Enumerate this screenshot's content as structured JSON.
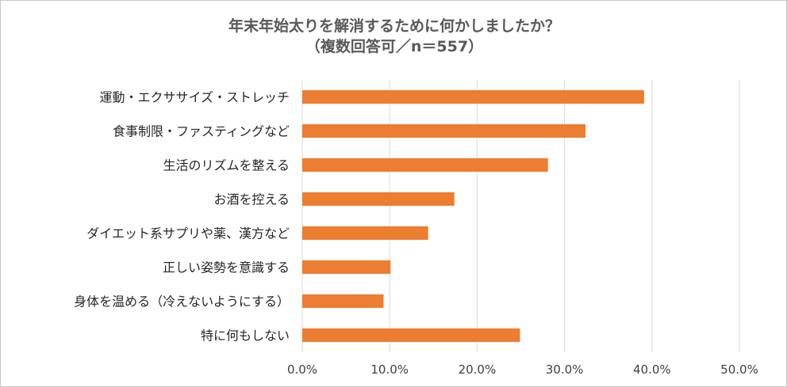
{
  "chart_data": {
    "type": "bar",
    "orientation": "horizontal",
    "title": "年末年始太りを解消するために何かしましたか？",
    "subtitle": "（複数回答可／n＝557）",
    "categories": [
      "運動・エクササイズ・ストレッチ",
      "食事制限・ファスティングなど",
      "生活のリズムを整える",
      "お酒を控える",
      "ダイエット系サプリや薬、漢方など",
      "正しい姿勢を意識する",
      "身体を温める（冷えないようにする）",
      "特に何もしない"
    ],
    "values": [
      39.1,
      32.4,
      28.1,
      17.4,
      14.4,
      10.1,
      9.3,
      24.9
    ],
    "xlim": [
      0,
      50
    ],
    "xticks": [
      0,
      10,
      20,
      30,
      40,
      50
    ],
    "tick_labels": [
      "0.0%",
      "10.0%",
      "20.0%",
      "30.0%",
      "40.0%",
      "50.0%"
    ],
    "xlabel": "",
    "ylabel": "",
    "grid": true,
    "legend": "none",
    "bar_color": "#ED7D31",
    "grid_color": "#D9D9D9"
  }
}
